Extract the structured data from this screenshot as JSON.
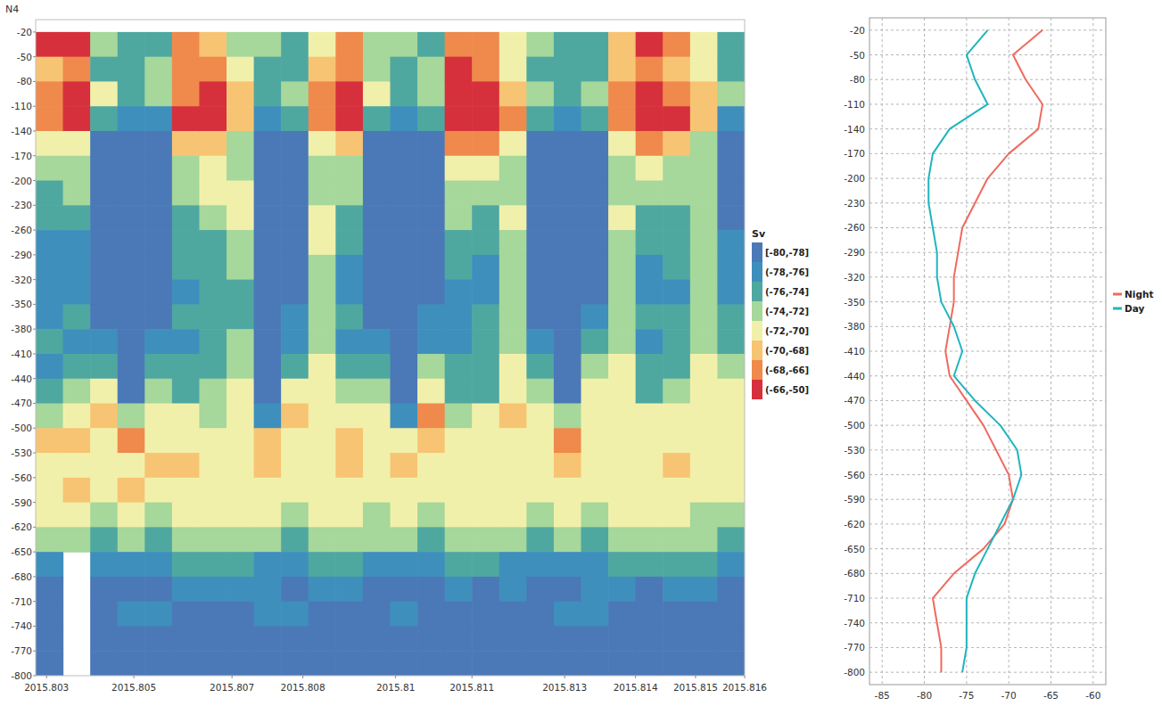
{
  "chart_data": [
    {
      "type": "heatmap",
      "title": "N4",
      "xlim": [
        2015.803,
        2015.816
      ],
      "ylim": [
        -800,
        -5
      ],
      "xticks": [
        {
          "value": 2015.8032,
          "label": "2015.803"
        },
        {
          "value": 2015.8048,
          "label": "2015.805"
        },
        {
          "value": 2015.8066,
          "label": "2015.807"
        },
        {
          "value": 2015.8079,
          "label": "2015.808"
        },
        {
          "value": 2015.8096,
          "label": "2015.81"
        },
        {
          "value": 2015.811,
          "label": "2015.811"
        },
        {
          "value": 2015.8127,
          "label": "2015.813"
        },
        {
          "value": 2015.814,
          "label": "2015.814"
        },
        {
          "value": 2015.8151,
          "label": "2015.815"
        },
        {
          "value": 2015.816,
          "label": "2015.816"
        }
      ],
      "yticks": [
        -20,
        -50,
        -80,
        -110,
        -140,
        -170,
        -200,
        -230,
        -260,
        -290,
        -320,
        -350,
        -380,
        -410,
        -440,
        -470,
        -500,
        -530,
        -560,
        -590,
        -620,
        -650,
        -680,
        -710,
        -740,
        -770,
        -800
      ],
      "x_bins": [
        2015.803,
        2015.8035,
        2015.804,
        2015.8045,
        2015.805,
        2015.8055,
        2015.806,
        2015.8065,
        2015.807,
        2015.8075,
        2015.808,
        2015.8085,
        2015.809,
        2015.8095,
        2015.81,
        2015.8105,
        2015.811,
        2015.8115,
        2015.812,
        2015.8125,
        2015.813,
        2015.8135,
        2015.814,
        2015.8145,
        2015.815,
        2015.8155,
        2015.816
      ],
      "y_bins": [
        -20,
        -50,
        -80,
        -110,
        -140,
        -170,
        -200,
        -230,
        -260,
        -290,
        -320,
        -350,
        -380,
        -410,
        -440,
        -470,
        -500,
        -530,
        -560,
        -590,
        -620,
        -650,
        -680,
        -710,
        -740,
        -770,
        -800
      ],
      "cells": [
        [
          -65,
          -68,
          -66,
          -67,
          -71,
          -73,
          -74,
          -75,
          -76,
          -76,
          -77,
          -76,
          -75,
          -76,
          -74,
          -72,
          -69,
          -70,
          -70,
          -71,
          -72,
          -76,
          -78,
          -79,
          -79,
          -79
        ],
        [
          -64,
          -66,
          -65,
          -64,
          -70,
          -72,
          -73,
          -74,
          -76,
          -76,
          -76,
          -75,
          -76,
          -74,
          -73,
          -70,
          -68,
          -70,
          -69,
          -70,
          -73,
          null,
          null,
          null,
          null,
          null
        ],
        [
          -73,
          -74,
          -71,
          -74,
          -79,
          -79,
          -79,
          -79,
          -79,
          -79,
          -79,
          -78,
          -76,
          -74,
          -71,
          -69,
          -70,
          -71,
          -70,
          -72,
          -74,
          -77,
          -78,
          -78,
          -79,
          -78
        ],
        [
          -74,
          -75,
          -74,
          -77,
          -79,
          -79,
          -79,
          -79,
          -79,
          -79,
          -79,
          -79,
          -79,
          -79,
          -78,
          -72,
          -67,
          -70,
          -69,
          -71,
          -73,
          -76,
          -78,
          -77,
          -78,
          -79
        ],
        [
          -74,
          -73,
          -72,
          -76,
          -79,
          -79,
          -79,
          -79,
          -79,
          -79,
          -79,
          -78,
          -76,
          -74,
          -72,
          -70,
          -70,
          -69,
          -70,
          -72,
          -74,
          -76,
          -78,
          -77,
          -78,
          -78
        ],
        [
          -67,
          -67,
          -66,
          -65,
          -69,
          -72,
          -73,
          -74,
          -74,
          -75,
          -76,
          -75,
          -76,
          -75,
          -74,
          -71,
          -70,
          -69,
          -70,
          -70,
          -72,
          -75,
          -77,
          -78,
          -79,
          -79
        ],
        [
          -68,
          -66,
          -65,
          -64,
          -69,
          -71,
          -71,
          -72,
          -74,
          -75,
          -75,
          -74,
          -75,
          -75,
          -73,
          -72,
          -70,
          -70,
          -70,
          -71,
          -72,
          -74,
          -77,
          -79,
          -79,
          -78
        ],
        [
          -72,
          -71,
          -69,
          -68,
          -72,
          -72,
          -71,
          -70,
          -72,
          -73,
          -74,
          -74,
          -73,
          -72,
          -71,
          -70,
          -70,
          -71,
          -71,
          -71,
          -73,
          -75,
          -77,
          -78,
          -78,
          -78
        ],
        [
          -73,
          -75,
          -75,
          -77,
          -79,
          -79,
          -79,
          -79,
          -79,
          -79,
          -79,
          -79,
          -79,
          -79,
          -79,
          -76,
          -69,
          -68,
          -70,
          -71,
          -73,
          -76,
          -77,
          -77,
          -78,
          -78
        ],
        [
          -74,
          -74,
          -73,
          -75,
          -78,
          -79,
          -79,
          -79,
          -79,
          -79,
          -78,
          -77,
          -76,
          -74,
          -71,
          -69,
          -70,
          -70,
          -71,
          -72,
          -74,
          -76,
          -78,
          -77,
          -78,
          -78
        ],
        [
          -70,
          -69,
          -67,
          -66,
          -70,
          -72,
          -72,
          -71,
          -71,
          -72,
          -73,
          -72,
          -72,
          -71,
          -70,
          -70,
          -70,
          -70,
          -71,
          -71,
          -72,
          -75,
          -77,
          -78,
          -78,
          -78
        ],
        [
          -66,
          -66,
          -63,
          -62,
          -68,
          -72,
          -73,
          -74,
          -75,
          -76,
          -76,
          -75,
          -76,
          -75,
          -73,
          -70,
          -69,
          -69,
          -70,
          -70,
          -72,
          -74,
          -76,
          -78,
          -79,
          -79
        ],
        [
          -72,
          -73,
          -71,
          -74,
          -78,
          -79,
          -79,
          -79,
          -79,
          -79,
          -79,
          -78,
          -76,
          -74,
          -72,
          -70,
          -70,
          -70,
          -70,
          -72,
          -73,
          -76,
          -78,
          -78,
          -78,
          -78
        ],
        [
          -73,
          -75,
          -74,
          -76,
          -79,
          -79,
          -79,
          -79,
          -79,
          -79,
          -79,
          -79,
          -79,
          -79,
          -79,
          -77,
          -71,
          -69,
          -70,
          -71,
          -73,
          -76,
          -78,
          -77,
          -78,
          -78
        ],
        [
          -74,
          -73,
          -72,
          -75,
          -78,
          -79,
          -79,
          -79,
          -79,
          -79,
          -78,
          -77,
          -76,
          -73,
          -70,
          -67,
          -68,
          -70,
          -70,
          -72,
          -74,
          -77,
          -78,
          -78,
          -78,
          -79
        ],
        [
          -66,
          -65,
          -63,
          -62,
          -67,
          -70,
          -72,
          -73,
          -74,
          -75,
          -76,
          -76,
          -76,
          -75,
          -74,
          -72,
          -70,
          -70,
          -70,
          -71,
          -72,
          -75,
          -77,
          -79,
          -79,
          -79
        ],
        [
          -67,
          -66,
          -64,
          -63,
          -66,
          -71,
          -72,
          -74,
          -75,
          -76,
          -76,
          -75,
          -75,
          -74,
          -74,
          -71,
          -71,
          -70,
          -70,
          -71,
          -73,
          -75,
          -78,
          -79,
          -78,
          -79
        ],
        [
          -71,
          -70,
          -68,
          -67,
          -71,
          -72,
          -72,
          -71,
          -72,
          -72,
          -73,
          -73,
          -72,
          -71,
          -70,
          -69,
          -70,
          -70,
          -71,
          -71,
          -73,
          -76,
          -77,
          -78,
          -78,
          -78
        ],
        [
          -73,
          -74,
          -72,
          -75,
          -78,
          -79,
          -79,
          -79,
          -79,
          -79,
          -79,
          -78,
          -77,
          -75,
          -72,
          -70,
          -70,
          -71,
          -70,
          -72,
          -74,
          -77,
          -78,
          -78,
          -78,
          -78
        ],
        [
          -74,
          -75,
          -74,
          -77,
          -79,
          -79,
          -79,
          -79,
          -79,
          -79,
          -79,
          -79,
          -79,
          -79,
          -78,
          -73,
          -67,
          -68,
          -70,
          -71,
          -73,
          -76,
          -78,
          -77,
          -78,
          -78
        ],
        [
          -74,
          -74,
          -72,
          -75,
          -78,
          -79,
          -79,
          -79,
          -79,
          -79,
          -78,
          -77,
          -75,
          -72,
          -70,
          -70,
          -71,
          -70,
          -70,
          -72,
          -74,
          -76,
          -77,
          -77,
          -78,
          -78
        ],
        [
          -69,
          -69,
          -67,
          -66,
          -71,
          -72,
          -72,
          -71,
          -72,
          -73,
          -73,
          -72,
          -72,
          -71,
          -70,
          -70,
          -70,
          -71,
          -71,
          -71,
          -73,
          -75,
          -77,
          -78,
          -78,
          -78
        ],
        [
          -65,
          -67,
          -65,
          -63,
          -67,
          -71,
          -73,
          -74,
          -75,
          -76,
          -76,
          -75,
          -76,
          -75,
          -74,
          -71,
          -70,
          -70,
          -70,
          -71,
          -72,
          -75,
          -78,
          -79,
          -79,
          -79
        ],
        [
          -66,
          -68,
          -66,
          -64,
          -68,
          -72,
          -73,
          -74,
          -75,
          -75,
          -76,
          -75,
          -75,
          -75,
          -73,
          -71,
          -70,
          -69,
          -70,
          -70,
          -72,
          -74,
          -77,
          -78,
          -79,
          -79
        ],
        [
          -71,
          -71,
          -69,
          -68,
          -72,
          -73,
          -72,
          -72,
          -72,
          -73,
          -73,
          -72,
          -72,
          -71,
          -70,
          -70,
          -70,
          -71,
          -71,
          -72,
          -73,
          -75,
          -77,
          -78,
          -78,
          -78
        ],
        [
          -74,
          -75,
          -73,
          -76,
          -78,
          -79,
          -78,
          -78,
          -77,
          -77,
          -76,
          -75,
          -74,
          -73,
          -71,
          -70,
          -70,
          -70,
          -71,
          -72,
          -74,
          -76,
          -78,
          -78,
          -78,
          -78
        ]
      ],
      "colorbar": {
        "title": "Sv",
        "bins": [
          {
            "label": "[-80,-78]",
            "min": -80,
            "max": -78,
            "color": "#4b79b7"
          },
          {
            "label": "(-78,-76]",
            "min": -78,
            "max": -76,
            "color": "#3f8fbd"
          },
          {
            "label": "(-76,-74]",
            "min": -76,
            "max": -74,
            "color": "#4fa8a0"
          },
          {
            "label": "(-74,-72]",
            "min": -74,
            "max": -72,
            "color": "#a6d79b"
          },
          {
            "label": "(-72,-70]",
            "min": -72,
            "max": -70,
            "color": "#f1f0aa"
          },
          {
            "label": "(-70,-68]",
            "min": -70,
            "max": -68,
            "color": "#f7c473"
          },
          {
            "label": "(-68,-66]",
            "min": -68,
            "max": -66,
            "color": "#ef8a4c"
          },
          {
            "label": "(-66,-50]",
            "min": -66,
            "max": -50,
            "color": "#d6303c"
          }
        ]
      }
    },
    {
      "type": "line",
      "y": [
        -20,
        -50,
        -80,
        -110,
        -140,
        -170,
        -200,
        -230,
        -260,
        -290,
        -320,
        -350,
        -380,
        -410,
        -440,
        -470,
        -500,
        -530,
        -560,
        -590,
        -620,
        -650,
        -680,
        -710,
        -740,
        -770,
        -800
      ],
      "series": [
        {
          "name": "Night",
          "color": "#f06a60",
          "values": [
            -66,
            -69.5,
            -68,
            -66,
            -66.5,
            -70,
            -72.5,
            -74,
            -75.5,
            -76,
            -76.5,
            -76.5,
            -77,
            -77.5,
            -77,
            -75,
            -73,
            -71.5,
            -70,
            -69.5,
            -70.5,
            -73,
            -76.5,
            -79,
            -78.5,
            -78,
            -78
          ]
        },
        {
          "name": "Day",
          "color": "#1fb5bf",
          "values": [
            -72.5,
            -75,
            -74,
            -72.5,
            -77,
            -79,
            -79.5,
            -79.5,
            -79,
            -78.5,
            -78.5,
            -78,
            -76.5,
            -75.5,
            -76.5,
            -74,
            -71,
            -69,
            -68.5,
            -69.5,
            -71,
            -72.5,
            -74,
            -75,
            -75,
            -75,
            -75.5
          ]
        }
      ],
      "xlim": [
        -86.5,
        -58.5
      ],
      "xticks": [
        -85,
        -80,
        -75,
        -70,
        -65,
        -60
      ],
      "ylim": [
        -815,
        -5
      ],
      "yticks": [
        -20,
        -50,
        -80,
        -110,
        -140,
        -170,
        -200,
        -230,
        -260,
        -290,
        -320,
        -350,
        -380,
        -410,
        -440,
        -470,
        -500,
        -530,
        -560,
        -590,
        -620,
        -650,
        -680,
        -710,
        -740,
        -770,
        -800
      ],
      "grid": true,
      "legend": "right"
    }
  ]
}
